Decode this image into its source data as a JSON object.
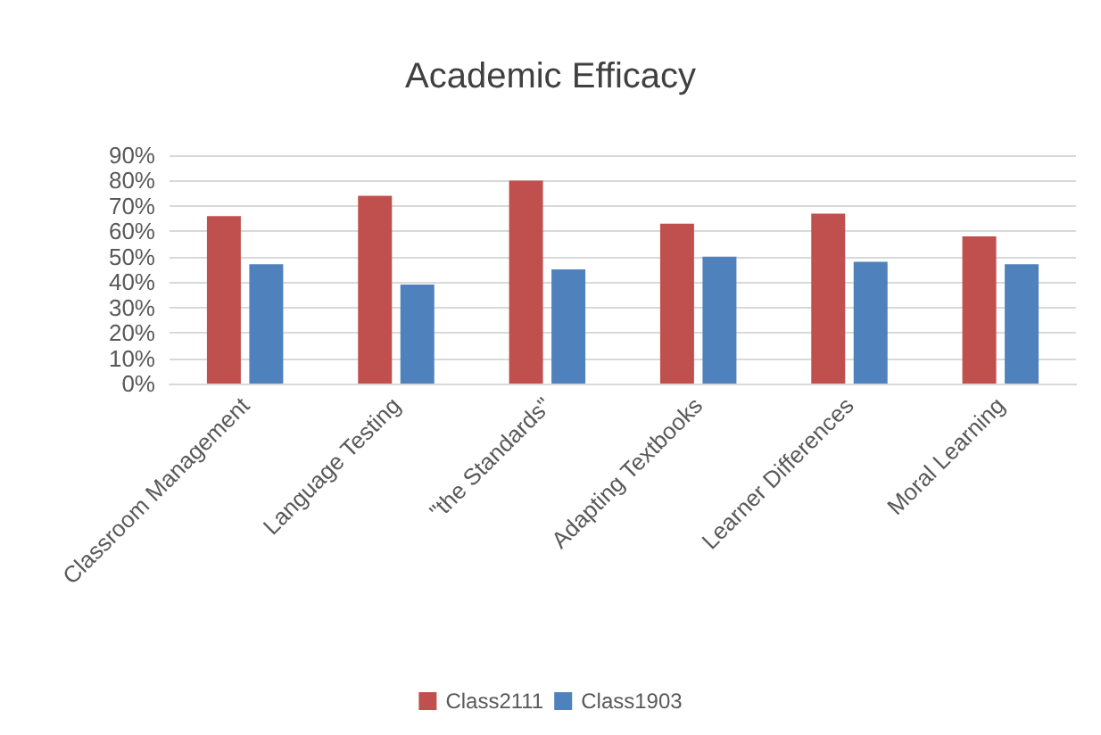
{
  "chart_data": {
    "type": "bar",
    "title": "Academic Efficacy",
    "categories": [
      "Classroom Management",
      "Language Testing",
      "\"the Standards\"",
      "Adapting Textbooks",
      "Learner Differences",
      "Moral Learning"
    ],
    "series": [
      {
        "name": "Class2111",
        "color": "#c0504d",
        "values": [
          66,
          74,
          80,
          63,
          67,
          58
        ]
      },
      {
        "name": "Class1903",
        "color": "#4f81bd",
        "values": [
          47,
          39,
          45,
          50,
          48,
          47
        ]
      }
    ],
    "ylim": [
      0,
      90
    ],
    "yticks": [
      {
        "value": 0,
        "label": "0%"
      },
      {
        "value": 10,
        "label": "10%"
      },
      {
        "value": 20,
        "label": "20%"
      },
      {
        "value": 30,
        "label": "30%"
      },
      {
        "value": 40,
        "label": "40%"
      },
      {
        "value": 50,
        "label": "50%"
      },
      {
        "value": 60,
        "label": "60%"
      },
      {
        "value": 70,
        "label": "70%"
      },
      {
        "value": 80,
        "label": "80%"
      },
      {
        "value": 90,
        "label": "90%"
      }
    ],
    "grid": "y",
    "legend": "bottom"
  }
}
